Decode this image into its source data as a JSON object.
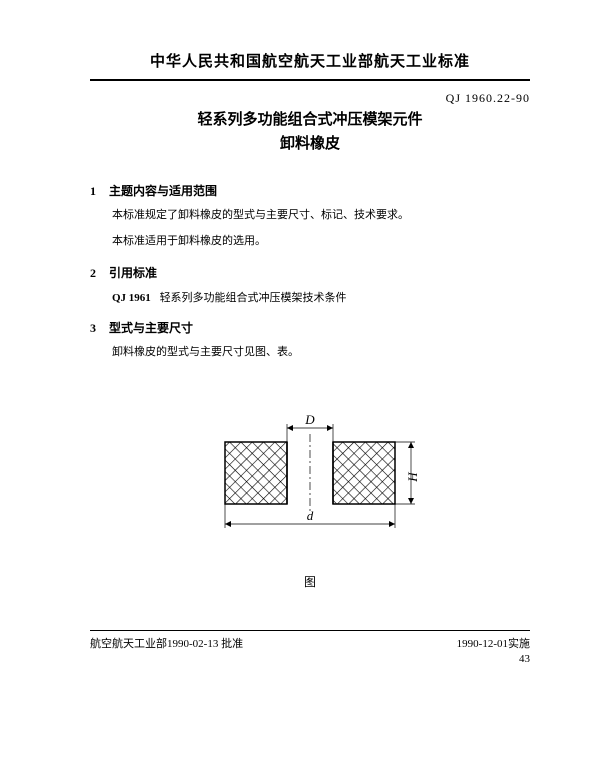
{
  "header": {
    "org_title": "中华人民共和国航空航天工业部航天工业标准",
    "doc_code": "QJ 1960.22-90",
    "doc_title_line1": "轻系列多功能组合式冲压模架元件",
    "doc_title_line2": "卸料橡皮"
  },
  "sections": {
    "s1": {
      "num": "1",
      "title": "主题内容与适用范围",
      "p1": "本标准规定了卸料橡皮的型式与主要尺寸、标记、技术要求。",
      "p2": "本标准适用于卸料橡皮的选用。"
    },
    "s2": {
      "num": "2",
      "title": "引用标准",
      "ref_code": "QJ 1961",
      "ref_text": "轻系列多功能组合式冲压模架技术条件"
    },
    "s3": {
      "num": "3",
      "title": "型式与主要尺寸",
      "p1": "卸料橡皮的型式与主要尺寸见图、表。"
    }
  },
  "figure": {
    "caption": "图",
    "label_D": "D",
    "label_d": "d",
    "label_H": "H",
    "outer_w": 170,
    "outer_h": 62,
    "hole_w": 46,
    "stroke": "#000000",
    "hatch": "#000000",
    "bg": "#ffffff"
  },
  "footer": {
    "left": "航空航天工业部1990-02-13 批准",
    "right": "1990-12-01实施",
    "page_num": "43"
  }
}
